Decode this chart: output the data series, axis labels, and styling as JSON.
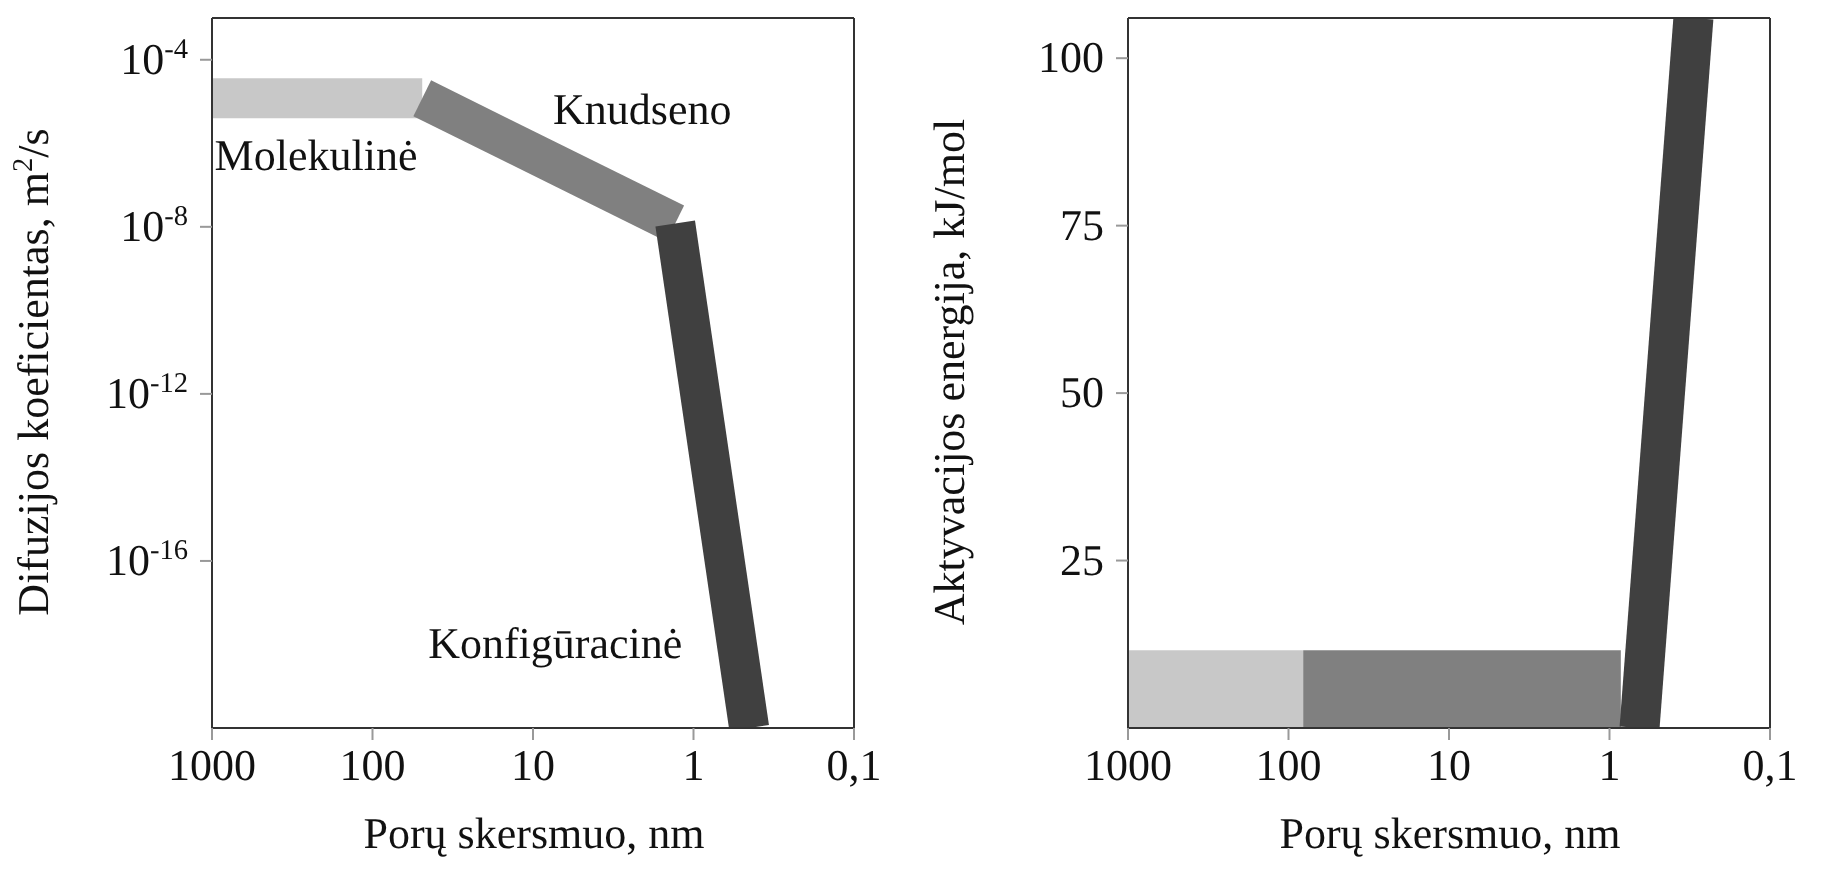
{
  "chart_data": [
    {
      "type": "line",
      "xlabel": "Porų skersmuo, nm",
      "ylabel": "Difuzijos koeficientas, m$^{2}$/s",
      "log": "xy",
      "marker": "none",
      "line_style": "solid",
      "xlim": [
        1000,
        0.1
      ],
      "xticks": [
        1000,
        100,
        10,
        1,
        {
          "value": 0.1,
          "label": "0,1"
        }
      ],
      "ylim": [
        1e-20,
        0.001
      ],
      "yticks": [
        {
          "value": 0.0001,
          "label": "10$^{-4}$"
        },
        {
          "value": 1e-08,
          "label": "10$^{-8}$"
        },
        {
          "value": 1e-12,
          "label": "10$^{-12}$"
        },
        {
          "value": 1e-16,
          "label": "10$^{-16}$"
        }
      ],
      "series": [
        {
          "name": "Molekulinė",
          "color": "#c8c8c8",
          "x": [
            1000,
            49
          ],
          "values": [
            1.2e-05,
            1.2e-05
          ]
        },
        {
          "name": "Knudseno",
          "color": "#808080",
          "x": [
            49,
            1.3
          ],
          "values": [
            1.2e-05,
            1.2e-08
          ]
        },
        {
          "name": "Konfigūracinė",
          "color": "#404040",
          "x": [
            1.3,
            0.45
          ],
          "values": [
            1.2e-08,
            1e-20
          ]
        }
      ]
    },
    {
      "type": "area",
      "xlabel": "Porų skersmuo, nm",
      "ylabel": "Aktyvacijos energija, kJ/mol",
      "log": "x",
      "marker": "none",
      "line_style": "solid",
      "xlim": [
        1000,
        0.1
      ],
      "xticks": [
        1000,
        100,
        10,
        1,
        {
          "value": 0.1,
          "label": "0,1"
        }
      ],
      "ylim": [
        0,
        106
      ],
      "yticks": [
        25,
        50,
        75,
        100
      ],
      "series": [
        {
          "color": "#c8c8c8",
          "x": [
            1000,
            81
          ],
          "values": [
            11.6,
            11.6
          ]
        },
        {
          "color": "#808080",
          "x": [
            81,
            0.85
          ],
          "values": [
            11.6,
            11.6
          ]
        },
        {
          "type": "line",
          "color": "#404040",
          "x": [
            0.65,
            0.3
          ],
          "values": [
            0,
            106
          ]
        }
      ]
    }
  ]
}
